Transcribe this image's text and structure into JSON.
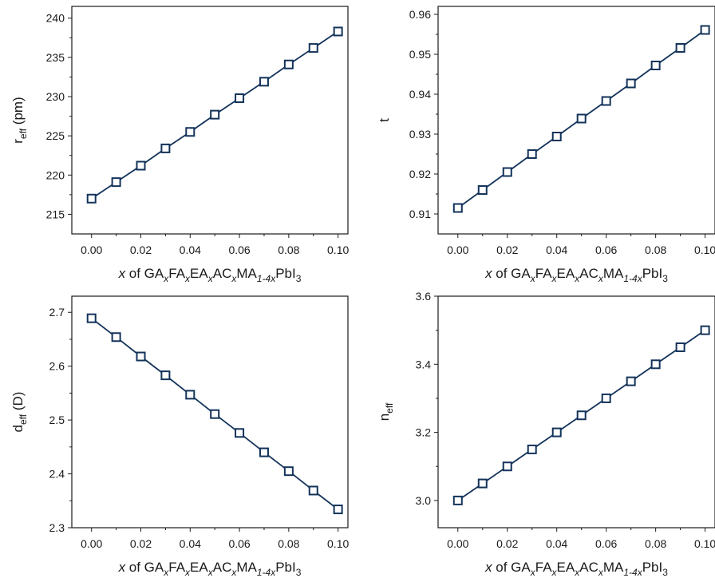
{
  "colors": {
    "series": "#13335a",
    "axis": "#1a1a1a",
    "background": "#ffffff"
  },
  "chart_data": [
    {
      "type": "line",
      "panel": "top-left",
      "ylabel": {
        "base": "r",
        "sub": "eff",
        "tail": " (pm)"
      },
      "xlabel": {
        "italic": "x",
        "segments": [
          {
            "t": " of GA",
            "s": false
          },
          {
            "t": "x",
            "s": true
          },
          {
            "t": "FA",
            "s": false
          },
          {
            "t": "x",
            "s": true
          },
          {
            "t": "EA",
            "s": false
          },
          {
            "t": "x",
            "s": true
          },
          {
            "t": "AC",
            "s": false
          },
          {
            "t": "x",
            "s": true
          },
          {
            "t": "MA",
            "s": false
          },
          {
            "t": "1-4x",
            "s": true
          },
          {
            "t": "PbI",
            "s": false
          },
          {
            "t": "3",
            "s": true
          }
        ]
      },
      "xlim": [
        -0.008,
        0.104
      ],
      "ylim": [
        212.5,
        241.5
      ],
      "xticks": [
        "0.00",
        "0.02",
        "0.04",
        "0.06",
        "0.08",
        "0.10"
      ],
      "yticks": [
        "215",
        "220",
        "225",
        "230",
        "235",
        "240"
      ],
      "x": [
        0.0,
        0.01,
        0.02,
        0.03,
        0.04,
        0.05,
        0.06,
        0.07,
        0.08,
        0.09,
        0.1
      ],
      "y": [
        217.0,
        219.1,
        221.2,
        223.4,
        225.5,
        227.7,
        229.8,
        231.9,
        234.1,
        236.2,
        238.3
      ],
      "marker": "open-square"
    },
    {
      "type": "line",
      "panel": "top-right",
      "ylabel": {
        "base": "t",
        "sub": "",
        "tail": ""
      },
      "xlabel": {
        "italic": "x",
        "segments": [
          {
            "t": " of GA",
            "s": false
          },
          {
            "t": "x",
            "s": true
          },
          {
            "t": "FA",
            "s": false
          },
          {
            "t": "x",
            "s": true
          },
          {
            "t": "EA",
            "s": false
          },
          {
            "t": "x",
            "s": true
          },
          {
            "t": "AC",
            "s": false
          },
          {
            "t": "x",
            "s": true
          },
          {
            "t": "MA",
            "s": false
          },
          {
            "t": "1-4x",
            "s": true
          },
          {
            "t": "PbI",
            "s": false
          },
          {
            "t": "3",
            "s": true
          }
        ]
      },
      "xlim": [
        -0.008,
        0.104
      ],
      "ylim": [
        0.905,
        0.962
      ],
      "xticks": [
        "0.00",
        "0.02",
        "0.04",
        "0.06",
        "0.08",
        "0.10"
      ],
      "yticks": [
        "0.91",
        "0.92",
        "0.93",
        "0.94",
        "0.95",
        "0.96"
      ],
      "x": [
        0.0,
        0.01,
        0.02,
        0.03,
        0.04,
        0.05,
        0.06,
        0.07,
        0.08,
        0.09,
        0.1
      ],
      "y": [
        0.9115,
        0.916,
        0.9205,
        0.925,
        0.9294,
        0.9339,
        0.9383,
        0.9427,
        0.9472,
        0.9516,
        0.9561
      ],
      "marker": "open-square"
    },
    {
      "type": "line",
      "panel": "bottom-left",
      "ylabel": {
        "base": "d",
        "sub": "eff",
        "tail": " (D)"
      },
      "xlabel": {
        "italic": "x",
        "segments": [
          {
            "t": " of GA",
            "s": false
          },
          {
            "t": "x",
            "s": true
          },
          {
            "t": "FA",
            "s": false
          },
          {
            "t": "x",
            "s": true
          },
          {
            "t": "EA",
            "s": false
          },
          {
            "t": "x",
            "s": true
          },
          {
            "t": "AC",
            "s": false
          },
          {
            "t": "x",
            "s": true
          },
          {
            "t": "MA",
            "s": false
          },
          {
            "t": "1-4x",
            "s": true
          },
          {
            "t": "PbI",
            "s": false
          },
          {
            "t": "3",
            "s": true
          }
        ]
      },
      "xlim": [
        -0.008,
        0.104
      ],
      "ylim": [
        2.3,
        2.73
      ],
      "xticks": [
        "0.00",
        "0.02",
        "0.04",
        "0.06",
        "0.08",
        "0.10"
      ],
      "yticks": [
        "2.3",
        "2.4",
        "2.5",
        "2.6",
        "2.7"
      ],
      "x": [
        0.0,
        0.01,
        0.02,
        0.03,
        0.04,
        0.05,
        0.06,
        0.07,
        0.08,
        0.09,
        0.1
      ],
      "y": [
        2.689,
        2.654,
        2.618,
        2.583,
        2.547,
        2.511,
        2.476,
        2.44,
        2.405,
        2.369,
        2.334
      ],
      "marker": "open-square"
    },
    {
      "type": "line",
      "panel": "bottom-right",
      "ylabel": {
        "base": "n",
        "sub": "eff",
        "tail": ""
      },
      "xlabel": {
        "italic": "x",
        "segments": [
          {
            "t": " of GA",
            "s": false
          },
          {
            "t": "x",
            "s": true
          },
          {
            "t": "FA",
            "s": false
          },
          {
            "t": "x",
            "s": true
          },
          {
            "t": "EA",
            "s": false
          },
          {
            "t": "x",
            "s": true
          },
          {
            "t": "AC",
            "s": false
          },
          {
            "t": "x",
            "s": true
          },
          {
            "t": "MA",
            "s": false
          },
          {
            "t": "1-4x",
            "s": true
          },
          {
            "t": "PbI",
            "s": false
          },
          {
            "t": "3",
            "s": true
          }
        ]
      },
      "xlim": [
        -0.008,
        0.104
      ],
      "ylim": [
        2.92,
        3.6
      ],
      "xticks": [
        "0.00",
        "0.02",
        "0.04",
        "0.06",
        "0.08",
        "0.10"
      ],
      "yticks": [
        "3.0",
        "3.2",
        "3.4",
        "3.6"
      ],
      "x": [
        0.0,
        0.01,
        0.02,
        0.03,
        0.04,
        0.05,
        0.06,
        0.07,
        0.08,
        0.09,
        0.1
      ],
      "y": [
        3.0,
        3.05,
        3.1,
        3.15,
        3.2,
        3.25,
        3.3,
        3.35,
        3.4,
        3.45,
        3.5
      ],
      "marker": "open-square"
    }
  ]
}
